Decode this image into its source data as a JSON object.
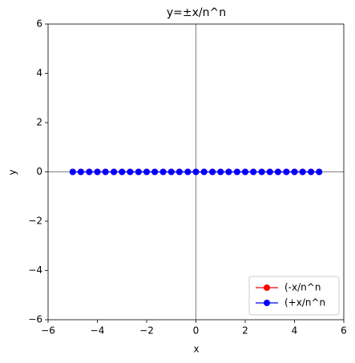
{
  "chart_data": {
    "type": "line",
    "title": "y=±x/n^n",
    "xlabel": "x",
    "ylabel": "y",
    "x": [
      -5,
      -4.67,
      -4.33,
      -4,
      -3.67,
      -3.33,
      -3,
      -2.67,
      -2.33,
      -2,
      -1.67,
      -1.33,
      -1,
      -0.67,
      -0.33,
      0,
      0.33,
      0.67,
      1,
      1.33,
      1.67,
      2,
      2.33,
      2.67,
      3,
      3.33,
      3.67,
      4,
      4.33,
      4.67,
      5
    ],
    "series": [
      {
        "name": "(-x/n^n",
        "color": "#ff0000",
        "values": [
          0,
          0,
          0,
          0,
          0,
          0,
          0,
          0,
          0,
          0,
          0,
          0,
          0,
          0,
          0,
          0,
          0,
          0,
          0,
          0,
          0,
          0,
          0,
          0,
          0,
          0,
          0,
          0,
          0,
          0,
          0
        ]
      },
      {
        "name": "(+x/n^n",
        "color": "#0000ff",
        "values": [
          0,
          0,
          0,
          0,
          0,
          0,
          0,
          0,
          0,
          0,
          0,
          0,
          0,
          0,
          0,
          0,
          0,
          0,
          0,
          0,
          0,
          0,
          0,
          0,
          0,
          0,
          0,
          0,
          0,
          0,
          0
        ]
      }
    ],
    "xlim": [
      -6,
      6
    ],
    "ylim": [
      -6,
      6
    ],
    "xticks": [
      {
        "value": -6,
        "label": "−6"
      },
      {
        "value": -4,
        "label": "−4"
      },
      {
        "value": -2,
        "label": "−2"
      },
      0,
      2,
      4,
      6
    ],
    "yticks": [
      {
        "value": -6,
        "label": "−6"
      },
      {
        "value": -4,
        "label": "−4"
      },
      {
        "value": -2,
        "label": "−2"
      },
      0,
      2,
      4,
      6
    ],
    "zero_lines": true,
    "legend": "lower right"
  }
}
